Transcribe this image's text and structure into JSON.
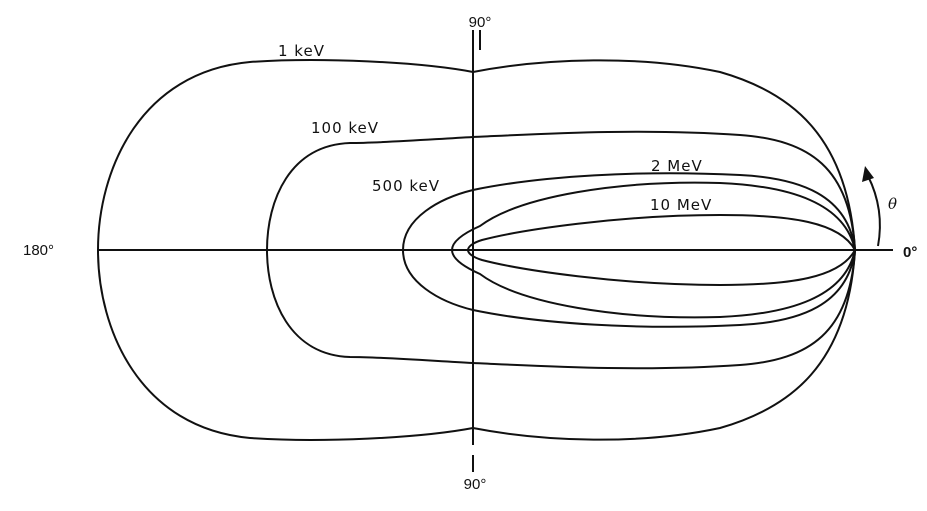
{
  "axes": {
    "top": "90°",
    "bottom": "90°",
    "left": "180°",
    "right": "0°",
    "theta": "θ"
  },
  "curves": [
    {
      "label": "1 keV"
    },
    {
      "label": "100 keV"
    },
    {
      "label": "500 keV"
    },
    {
      "label": "2 MeV"
    },
    {
      "label": "10 MeV"
    }
  ],
  "colors": {
    "ink": "#111111",
    "background": "#ffffff"
  }
}
